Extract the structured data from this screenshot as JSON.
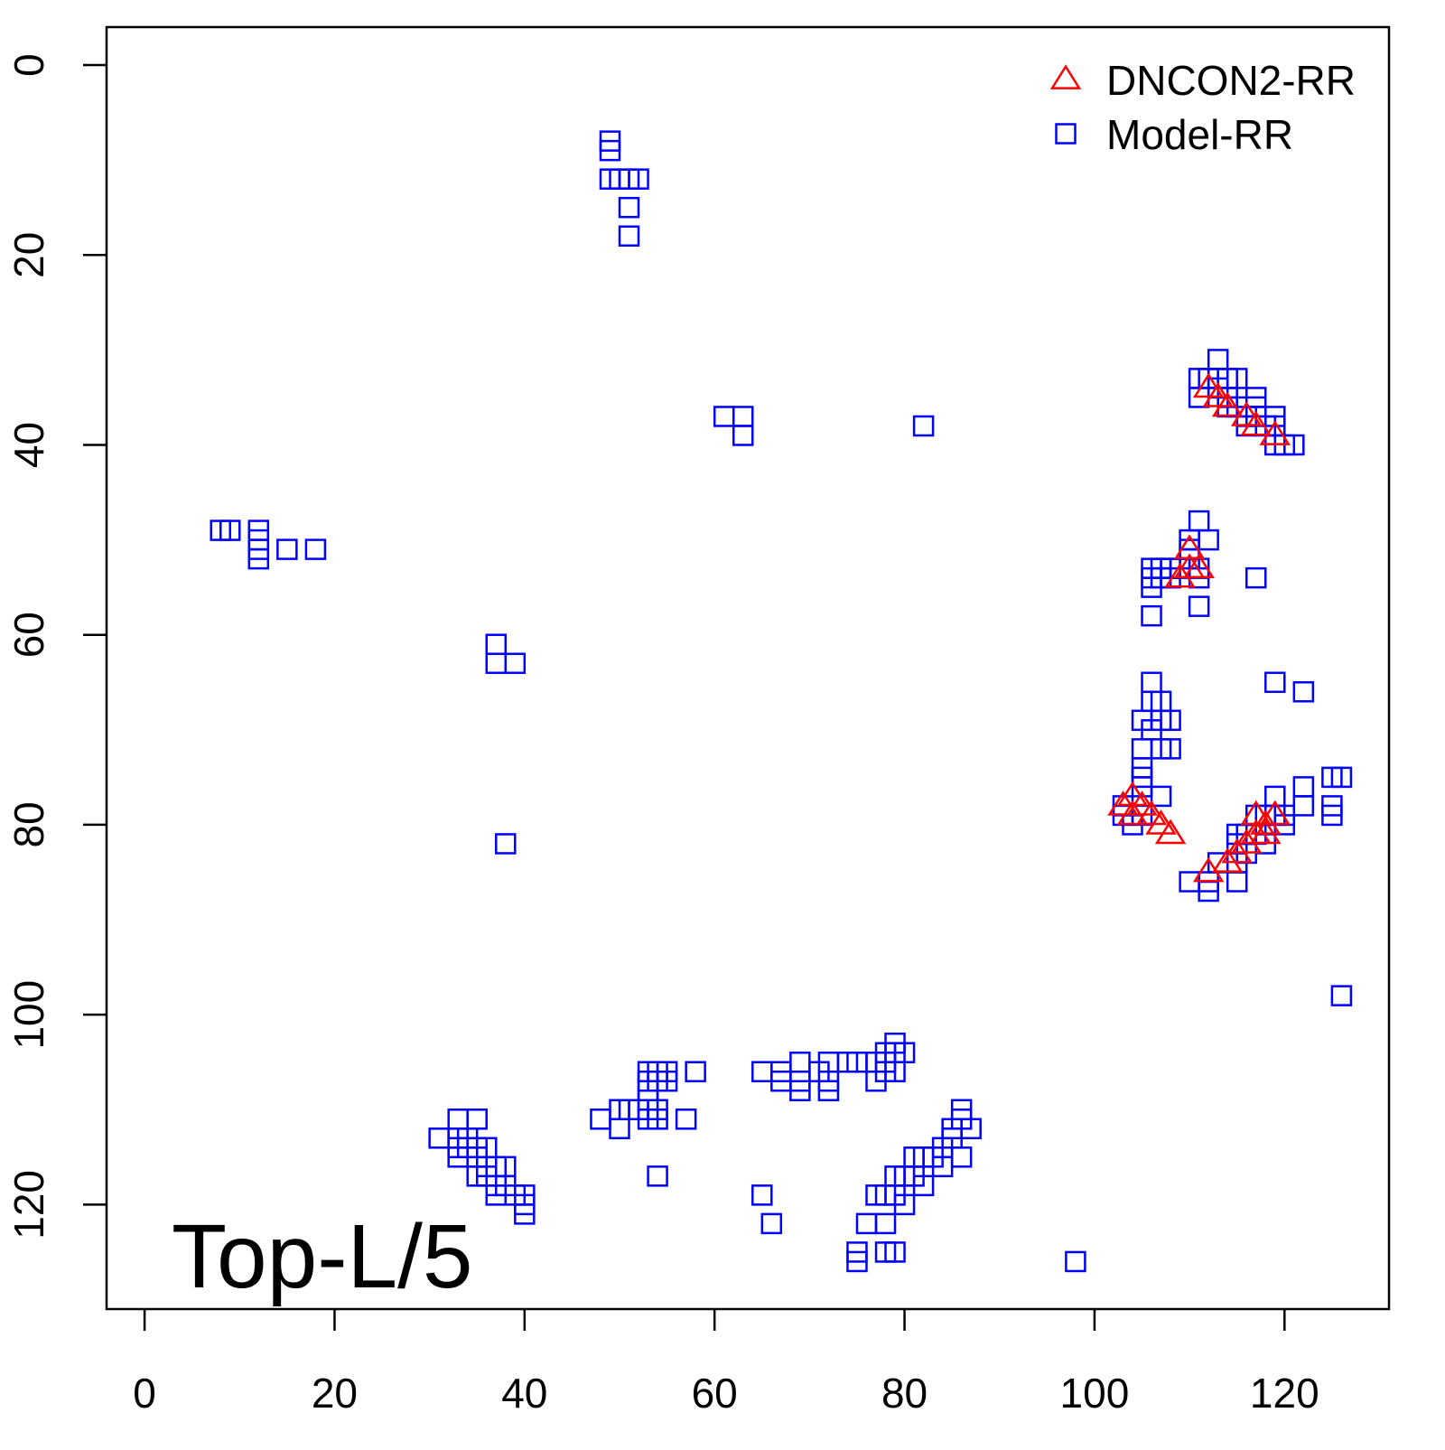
{
  "chart_data": {
    "type": "scatter",
    "annotation": "Top-L/5",
    "xlim": [
      -4,
      131
    ],
    "ylim": [
      131,
      -4
    ],
    "xticks": [
      0,
      20,
      40,
      60,
      80,
      100,
      120
    ],
    "yticks": [
      0,
      20,
      40,
      60,
      80,
      100,
      120
    ],
    "legend": "topright",
    "series": [
      {
        "name": "DNCON2-RR",
        "color": "#ff0000",
        "marker": "triangle",
        "x": [
          112,
          113,
          114,
          116,
          117,
          119,
          110,
          110,
          109,
          111,
          103,
          104,
          104,
          105,
          106,
          107,
          108,
          112,
          114,
          115,
          116,
          117,
          117,
          118,
          119,
          118
        ],
        "y": [
          34,
          35,
          36,
          37,
          38,
          39,
          51,
          53,
          54,
          53,
          78,
          77,
          79,
          78,
          79,
          80,
          81,
          85,
          84,
          83,
          82,
          81,
          79,
          80,
          79,
          81
        ]
      },
      {
        "name": "Model-RR",
        "color": "#0000ff",
        "marker": "square",
        "x": [
          49,
          49,
          49,
          50,
          51,
          52,
          51,
          51,
          61,
          63,
          63,
          82,
          8,
          9,
          12,
          12,
          12,
          12,
          15,
          18,
          37,
          37,
          39,
          38,
          113,
          111,
          112,
          113,
          114,
          115,
          111,
          113,
          114,
          114,
          115,
          117,
          116,
          116,
          117,
          118,
          119,
          119,
          119,
          120,
          121,
          117,
          111,
          112,
          110,
          106,
          106,
          106,
          107,
          107,
          108,
          108,
          109,
          110,
          111,
          111,
          106,
          111,
          117,
          110,
          119,
          122,
          106,
          106,
          107,
          105,
          107,
          108,
          106,
          105,
          107,
          108,
          105,
          105,
          105,
          107,
          103,
          103,
          104,
          105,
          110,
          112,
          112,
          113,
          115,
          115,
          115,
          115,
          116,
          116,
          117,
          118,
          119,
          119,
          120,
          120,
          122,
          122,
          125,
          126,
          125,
          125,
          126,
          118,
          117,
          31,
          33,
          35,
          33,
          34,
          33,
          34,
          35,
          35,
          36,
          33,
          35,
          36,
          36,
          37,
          37,
          37,
          38,
          38,
          39,
          40,
          40,
          40,
          48,
          50,
          50,
          51,
          52,
          53,
          53,
          53,
          53,
          54,
          55,
          53,
          54,
          55,
          54,
          54,
          58,
          57,
          54,
          65,
          67,
          67,
          69,
          69,
          69,
          71,
          72,
          72,
          72,
          74,
          75,
          77,
          77,
          78,
          78,
          78,
          79,
          79,
          79,
          80,
          65,
          66,
          86,
          86,
          87,
          85,
          85,
          84,
          86,
          84,
          83,
          82,
          81,
          81,
          82,
          80,
          79,
          79,
          78,
          77,
          80,
          78,
          76,
          75,
          75,
          79,
          78,
          98
        ],
        "y": [
          8,
          9,
          12,
          12,
          12,
          12,
          15,
          18,
          37,
          37,
          39,
          38,
          49,
          49,
          49,
          50,
          51,
          52,
          51,
          51,
          61,
          63,
          63,
          82,
          31,
          33,
          33,
          33,
          33,
          33,
          35,
          34,
          35,
          36,
          36,
          35,
          37,
          38,
          37,
          38,
          37,
          38,
          40,
          40,
          40,
          36,
          48,
          50,
          50,
          53,
          54,
          55,
          53,
          54,
          53,
          54,
          53,
          52,
          53,
          54,
          58,
          57,
          54,
          51,
          65,
          66,
          65,
          67,
          67,
          69,
          69,
          69,
          70,
          72,
          72,
          72,
          74,
          75,
          76,
          77,
          78,
          79,
          80,
          79,
          86,
          86,
          87,
          84,
          84,
          86,
          81,
          82,
          81,
          83,
          79,
          79,
          77,
          79,
          79,
          80,
          76,
          78,
          75,
          75,
          78,
          79,
          98,
          82,
          81,
          113,
          111,
          111,
          113,
          113,
          114,
          114,
          114,
          115,
          114,
          115,
          117,
          116,
          117,
          116,
          118,
          119,
          116,
          118,
          119,
          119,
          121,
          120,
          111,
          110,
          112,
          110,
          110,
          109,
          111,
          108,
          106,
          106,
          106,
          107,
          107,
          107,
          110,
          111,
          106,
          111,
          117,
          106,
          106,
          107,
          105,
          107,
          108,
          106,
          105,
          107,
          108,
          105,
          105,
          105,
          107,
          104,
          105,
          106,
          103,
          104,
          106,
          104,
          119,
          122,
          110,
          111,
          112,
          112,
          113,
          114,
          115,
          116,
          115,
          115,
          115,
          117,
          118,
          117,
          117,
          119,
          119,
          119,
          120,
          122,
          122,
          125,
          126,
          125,
          125,
          126
        ]
      }
    ]
  }
}
